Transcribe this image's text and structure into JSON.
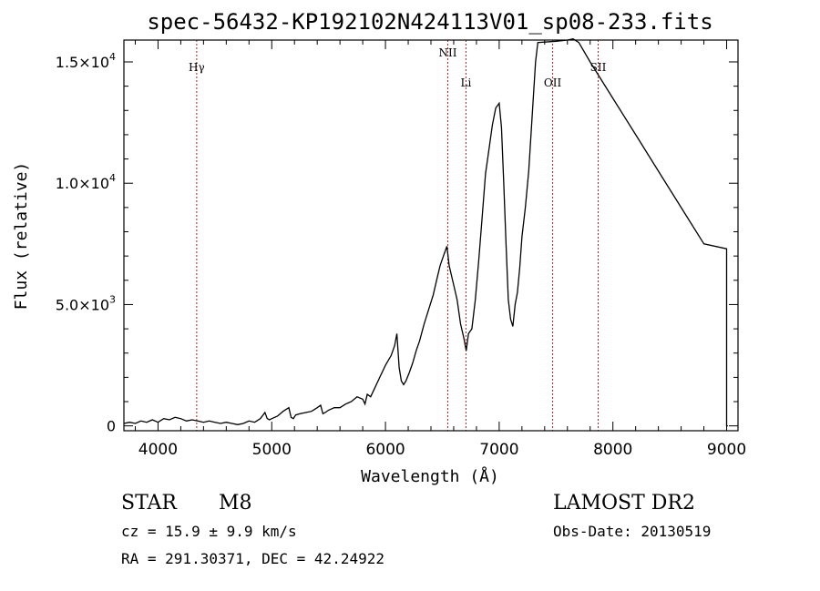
{
  "chart_data": {
    "type": "line",
    "title": "spec-56432-KP192102N424113V01_sp08-233.fits",
    "xlabel": "Wavelength (Å)",
    "ylabel": "Flux (relative)",
    "xlim": [
      3700,
      9100
    ],
    "ylim": [
      -200,
      15900
    ],
    "grid": false,
    "x_ticks": [
      {
        "value": 4000,
        "label": "4000"
      },
      {
        "value": 5000,
        "label": "5000"
      },
      {
        "value": 6000,
        "label": "6000"
      },
      {
        "value": 7000,
        "label": "7000"
      },
      {
        "value": 8000,
        "label": "8000"
      },
      {
        "value": 9000,
        "label": "9000"
      }
    ],
    "y_ticks": [
      {
        "value": 0,
        "label": "0",
        "sup": ""
      },
      {
        "value": 5000,
        "label": "5.0×10",
        "sup": "3"
      },
      {
        "value": 10000,
        "label": "1.0×10",
        "sup": "4"
      },
      {
        "value": 15000,
        "label": "1.5×10",
        "sup": "4"
      }
    ],
    "lines": [
      {
        "label": "Hγ",
        "x": 4340
      },
      {
        "label": "NII",
        "x": 6548
      },
      {
        "label": "Li",
        "x": 6708
      },
      {
        "label": "OII",
        "x": 7470
      },
      {
        "label": "SII",
        "x": 7870
      }
    ],
    "series": [
      {
        "x": [
          3700,
          3750,
          3800,
          3850,
          3900,
          3950,
          4000,
          4050,
          4100,
          4150,
          4200,
          4250,
          4300,
          4350,
          4400,
          4450,
          4500,
          4550,
          4600,
          4650,
          4700,
          4750,
          4800,
          4850,
          4900,
          4940,
          4960,
          4980,
          5000,
          5050,
          5100,
          5150,
          5170,
          5190,
          5210,
          5250,
          5300,
          5350,
          5400,
          5430,
          5450,
          5470,
          5500,
          5550,
          5600,
          5650,
          5700,
          5750,
          5800,
          5820,
          5840,
          5870,
          5900,
          5950,
          6000,
          6050,
          6080,
          6100,
          6120,
          6140,
          6160,
          6180,
          6210,
          6240,
          6270,
          6300,
          6340,
          6380,
          6420,
          6450,
          6480,
          6510,
          6540,
          6560,
          6580,
          6600,
          6630,
          6660,
          6690,
          6710,
          6730,
          6760,
          6790,
          6820,
          6850,
          6880,
          6910,
          6940,
          6970,
          7000,
          7020,
          7040,
          7060,
          7080,
          7100,
          7120,
          7140,
          7160,
          7180,
          7200,
          7230,
          7260,
          7280,
          7300,
          7320,
          7340,
          7500,
          7600,
          7650,
          7700,
          7800,
          8000,
          8200,
          8400,
          8600,
          8800,
          9000,
          9000,
          9010
        ],
        "y": [
          100,
          150,
          100,
          200,
          150,
          250,
          150,
          300,
          250,
          350,
          300,
          200,
          250,
          200,
          150,
          200,
          150,
          100,
          150,
          100,
          50,
          100,
          200,
          150,
          300,
          550,
          300,
          250,
          300,
          400,
          600,
          750,
          350,
          300,
          450,
          500,
          550,
          600,
          750,
          850,
          500,
          550,
          650,
          750,
          750,
          900,
          1000,
          1200,
          1100,
          900,
          1300,
          1200,
          1500,
          2000,
          2500,
          2900,
          3300,
          3800,
          2400,
          1850,
          1700,
          1850,
          2200,
          2600,
          3100,
          3500,
          4200,
          4800,
          5400,
          6000,
          6600,
          7000,
          7400,
          6600,
          6200,
          5800,
          5200,
          4200,
          3600,
          3100,
          3800,
          4000,
          5200,
          6800,
          8600,
          10400,
          11400,
          12400,
          13100,
          13300,
          12300,
          10000,
          7500,
          5200,
          4400,
          4100,
          5000,
          5500,
          6500,
          7800,
          9000,
          10500,
          12000,
          13500,
          15000,
          15800,
          15850,
          15900,
          15950,
          15800,
          15000,
          13500,
          12000,
          10500,
          9000,
          7500,
          7300,
          0,
          0
        ]
      }
    ]
  },
  "footer": {
    "class_label": "STAR",
    "subclass": "M8",
    "cz": "cz = 15.9 ± 9.9 km/s",
    "coords": "RA = 291.30371, DEC =  42.24922",
    "survey": "LAMOST DR2",
    "obs_date": "Obs-Date: 20130519"
  }
}
